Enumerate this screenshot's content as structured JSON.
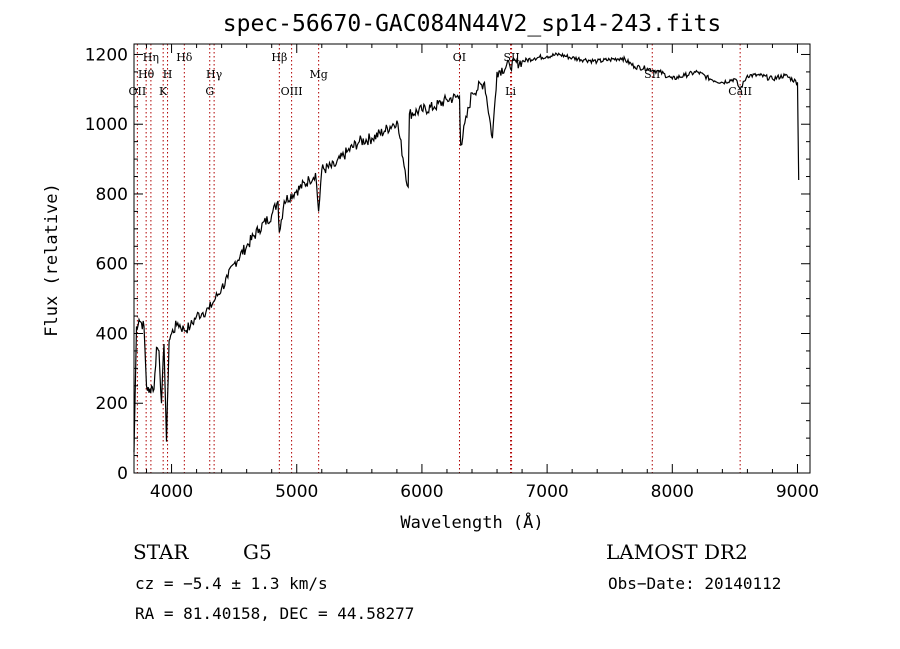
{
  "chart_data": {
    "type": "line",
    "title": "spec-56670-GAC084N44V2_sp14-243.fits",
    "xlabel": "Wavelength (Å)",
    "ylabel": "Flux (relative)",
    "xlim": [
      3700,
      9100
    ],
    "ylim": [
      0,
      1230
    ],
    "xticks": [
      4000,
      5000,
      6000,
      7000,
      8000,
      9000
    ],
    "yticks": [
      0,
      200,
      400,
      600,
      800,
      1000,
      1200
    ],
    "series": [
      {
        "name": "spectrum",
        "x": [
          3700,
          3720,
          3740,
          3760,
          3780,
          3800,
          3820,
          3840,
          3860,
          3880,
          3900,
          3920,
          3940,
          3960,
          3980,
          4000,
          4050,
          4100,
          4150,
          4200,
          4250,
          4300,
          4350,
          4400,
          4450,
          4500,
          4600,
          4700,
          4800,
          4850,
          4861,
          4900,
          5000,
          5100,
          5150,
          5175,
          5200,
          5300,
          5400,
          5500,
          5600,
          5700,
          5800,
          5890,
          5900,
          6000,
          6100,
          6200,
          6300,
          6310,
          6400,
          6500,
          6563,
          6600,
          6700,
          6800,
          6900,
          7000,
          7100,
          7200,
          7300,
          7400,
          7500,
          7600,
          7700,
          7800,
          7900,
          8000,
          8100,
          8200,
          8300,
          8400,
          8500,
          8542,
          8600,
          8700,
          8800,
          8900,
          9000,
          9010
        ],
        "y": [
          60,
          420,
          440,
          430,
          420,
          250,
          230,
          250,
          240,
          360,
          350,
          200,
          370,
          90,
          380,
          400,
          430,
          410,
          420,
          450,
          460,
          470,
          500,
          530,
          560,
          600,
          650,
          700,
          740,
          780,
          690,
          780,
          810,
          840,
          860,
          750,
          870,
          880,
          920,
          950,
          960,
          980,
          1010,
          820,
          1030,
          1040,
          1050,
          1070,
          1080,
          940,
          1090,
          1120,
          960,
          1150,
          1170,
          1180,
          1190,
          1195,
          1200,
          1190,
          1185,
          1180,
          1185,
          1190,
          1165,
          1160,
          1150,
          1130,
          1140,
          1150,
          1130,
          1120,
          1130,
          1100,
          1140,
          1140,
          1130,
          1140,
          1120,
          840
        ]
      }
    ],
    "line_markers": [
      {
        "label": "OII",
        "wavelength": 3727,
        "row": 3,
        "style": "dotted"
      },
      {
        "label": "Hθ",
        "wavelength": 3797,
        "row": 2,
        "style": "dotted"
      },
      {
        "label": "Hη",
        "wavelength": 3835,
        "row": 1,
        "style": "dotted"
      },
      {
        "label": "H",
        "wavelength": 3968,
        "row": 2,
        "style": "dotted"
      },
      {
        "label": "K",
        "wavelength": 3933,
        "row": 3,
        "style": "dotted"
      },
      {
        "label": "Hδ",
        "wavelength": 4102,
        "row": 1,
        "style": "dotted"
      },
      {
        "label": "Hγ",
        "wavelength": 4340,
        "row": 2,
        "style": "dotted"
      },
      {
        "label": "G",
        "wavelength": 4305,
        "row": 3,
        "style": "dotted"
      },
      {
        "label": "Hβ",
        "wavelength": 4861,
        "row": 1,
        "style": "dotted"
      },
      {
        "label": "OIII",
        "wavelength": 4959,
        "row": 3,
        "style": "dotted"
      },
      {
        "label": "Mg",
        "wavelength": 5175,
        "row": 2,
        "style": "dotted"
      },
      {
        "label": "OI",
        "wavelength": 6300,
        "row": 1,
        "style": "dotted"
      },
      {
        "label": "SII",
        "wavelength": 6716,
        "row": 1,
        "style": "dotted"
      },
      {
        "label": "Li",
        "wavelength": 6708,
        "row": 3,
        "style": "dotted"
      },
      {
        "label": "SII",
        "wavelength": 7840,
        "row": 2,
        "style": "dotted"
      },
      {
        "label": "CaII",
        "wavelength": 8542,
        "row": 3,
        "style": "dotted"
      }
    ]
  },
  "info": {
    "class": "STAR",
    "subclass": "G5",
    "survey": "LAMOST DR2",
    "cz": "cz = −5.4 ± 1.3 km/s",
    "obs_date": "Obs−Date: 20140112",
    "radec": "RA =  81.40158, DEC =  44.58277"
  }
}
